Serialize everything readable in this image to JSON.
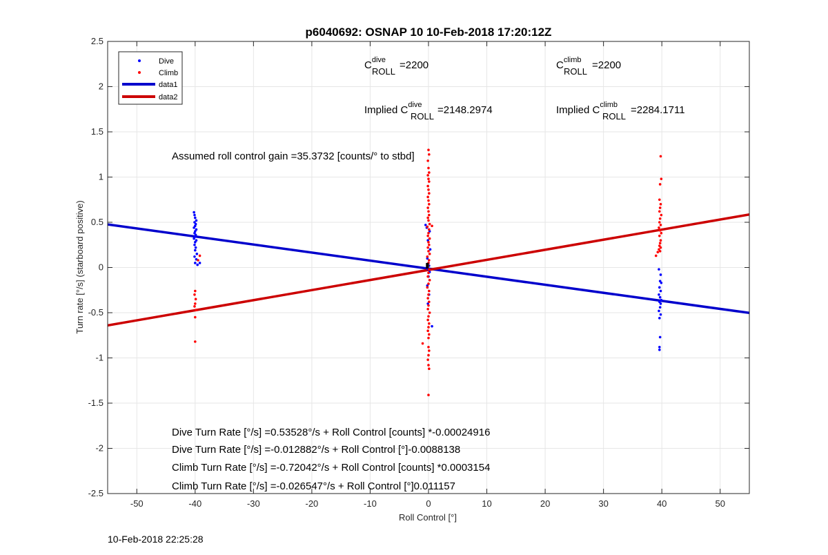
{
  "chart_data": {
    "type": "scatter",
    "title": "p6040692: OSNAP 10 10-Feb-2018 17:20:12Z",
    "xlabel": "Roll Control [°]",
    "ylabel": "Turn rate [°/s] (starboard positive)",
    "xlim": [
      -55,
      55
    ],
    "ylim": [
      -2.5,
      2.5
    ],
    "x_ticks": [
      -50,
      -40,
      -30,
      -20,
      -10,
      0,
      10,
      20,
      30,
      40,
      50
    ],
    "y_ticks": [
      -2.5,
      -2,
      -1.5,
      -1,
      -0.5,
      0,
      0.5,
      1,
      1.5,
      2,
      2.5
    ],
    "grid": true,
    "legend_position": "top-left",
    "legend": [
      {
        "label": "Dive",
        "kind": "marker",
        "color": "#0000ff"
      },
      {
        "label": "Climb",
        "kind": "marker",
        "color": "#ff0000"
      },
      {
        "label": "data1",
        "kind": "line",
        "color": "#0000cc"
      },
      {
        "label": "data2",
        "kind": "line",
        "color": "#cc0000"
      }
    ],
    "series": [
      {
        "name": "Dive",
        "kind": "scatter",
        "color": "#0000ff",
        "points": [
          [
            -40.2,
            0.61
          ],
          [
            -40.1,
            0.58
          ],
          [
            -40.0,
            0.55
          ],
          [
            -39.8,
            0.52
          ],
          [
            -40.1,
            0.5
          ],
          [
            -39.9,
            0.48
          ],
          [
            -40.0,
            0.46
          ],
          [
            -40.2,
            0.44
          ],
          [
            -39.8,
            0.42
          ],
          [
            -40.0,
            0.4
          ],
          [
            -40.1,
            0.38
          ],
          [
            -39.9,
            0.36
          ],
          [
            -40.0,
            0.34
          ],
          [
            -40.2,
            0.32
          ],
          [
            -39.8,
            0.3
          ],
          [
            -40.0,
            0.28
          ],
          [
            -40.1,
            0.25
          ],
          [
            -39.9,
            0.22
          ],
          [
            -40.0,
            0.19
          ],
          [
            -39.7,
            0.15
          ],
          [
            -40.1,
            0.12
          ],
          [
            -39.8,
            0.09
          ],
          [
            -40.0,
            0.05
          ],
          [
            -39.6,
            0.03
          ],
          [
            -39.2,
            0.05
          ],
          [
            -0.5,
            0.47
          ],
          [
            -0.3,
            0.44
          ],
          [
            0.2,
            0.4
          ],
          [
            -0.1,
            0.3
          ],
          [
            0.3,
            0.2
          ],
          [
            -0.2,
            0.1
          ],
          [
            0.0,
            0.05
          ],
          [
            0.1,
            0.02
          ],
          [
            -0.1,
            -0.02
          ],
          [
            0.2,
            -0.05
          ],
          [
            0.0,
            -0.1
          ],
          [
            -0.2,
            -0.2
          ],
          [
            0.6,
            -0.65
          ],
          [
            0.1,
            -0.3
          ],
          [
            -0.1,
            -0.4
          ],
          [
            39.5,
            -0.02
          ],
          [
            39.8,
            -0.08
          ],
          [
            39.7,
            -0.15
          ],
          [
            39.9,
            -0.17
          ],
          [
            39.6,
            -0.22
          ],
          [
            39.8,
            -0.26
          ],
          [
            39.5,
            -0.3
          ],
          [
            39.7,
            -0.33
          ],
          [
            39.9,
            -0.36
          ],
          [
            39.6,
            -0.38
          ],
          [
            39.8,
            -0.4
          ],
          [
            39.7,
            -0.44
          ],
          [
            39.5,
            -0.48
          ],
          [
            39.8,
            -0.52
          ],
          [
            39.6,
            -0.56
          ],
          [
            39.7,
            -0.77
          ],
          [
            39.6,
            -0.88
          ],
          [
            39.6,
            -0.91
          ]
        ]
      },
      {
        "name": "Climb",
        "kind": "scatter",
        "color": "#ff0000",
        "points": [
          [
            -39.2,
            0.13
          ],
          [
            -39.5,
            0.08
          ],
          [
            -40.0,
            -0.26
          ],
          [
            -40.1,
            -0.3
          ],
          [
            -39.9,
            -0.35
          ],
          [
            -40.0,
            -0.4
          ],
          [
            -40.1,
            -0.43
          ],
          [
            -39.8,
            -0.47
          ],
          [
            -40.0,
            -0.55
          ],
          [
            -40.0,
            -0.82
          ],
          [
            0.0,
            1.3
          ],
          [
            0.1,
            1.25
          ],
          [
            -0.1,
            1.18
          ],
          [
            0.0,
            1.1
          ],
          [
            0.1,
            1.05
          ],
          [
            -0.1,
            1.02
          ],
          [
            0.0,
            0.98
          ],
          [
            0.1,
            0.95
          ],
          [
            -0.1,
            0.9
          ],
          [
            0.0,
            0.86
          ],
          [
            0.1,
            0.82
          ],
          [
            -0.1,
            0.78
          ],
          [
            0.0,
            0.74
          ],
          [
            0.1,
            0.7
          ],
          [
            -0.1,
            0.66
          ],
          [
            0.0,
            0.62
          ],
          [
            0.1,
            0.58
          ],
          [
            -0.1,
            0.55
          ],
          [
            0.0,
            0.52
          ],
          [
            0.2,
            0.48
          ],
          [
            -0.2,
            0.45
          ],
          [
            0.1,
            0.42
          ],
          [
            0.0,
            0.38
          ],
          [
            0.6,
            0.46
          ],
          [
            -0.1,
            0.35
          ],
          [
            0.2,
            0.32
          ],
          [
            0.0,
            0.28
          ],
          [
            0.1,
            0.25
          ],
          [
            -0.1,
            0.22
          ],
          [
            0.0,
            0.18
          ],
          [
            0.2,
            0.15
          ],
          [
            -0.2,
            0.12
          ],
          [
            0.1,
            0.08
          ],
          [
            0.0,
            0.05
          ],
          [
            -0.1,
            0.02
          ],
          [
            0.1,
            -0.02
          ],
          [
            0.0,
            -0.06
          ],
          [
            -0.1,
            -0.1
          ],
          [
            0.2,
            -0.14
          ],
          [
            0.0,
            -0.18
          ],
          [
            -0.2,
            -0.22
          ],
          [
            0.1,
            -0.26
          ],
          [
            0.0,
            -0.3
          ],
          [
            -0.1,
            -0.34
          ],
          [
            0.1,
            -0.38
          ],
          [
            0.0,
            -0.42
          ],
          [
            -0.1,
            -0.46
          ],
          [
            0.2,
            -0.5
          ],
          [
            0.0,
            -0.54
          ],
          [
            -0.1,
            -0.58
          ],
          [
            0.1,
            -0.62
          ],
          [
            0.0,
            -0.66
          ],
          [
            -0.1,
            -0.7
          ],
          [
            0.1,
            -0.74
          ],
          [
            0.0,
            -0.78
          ],
          [
            -1.0,
            -0.84
          ],
          [
            0.0,
            -0.88
          ],
          [
            0.1,
            -0.92
          ],
          [
            0.0,
            -0.97
          ],
          [
            -0.1,
            -1.02
          ],
          [
            0.0,
            -1.08
          ],
          [
            0.1,
            -1.12
          ],
          [
            0.0,
            -1.41
          ],
          [
            39.8,
            1.23
          ],
          [
            39.9,
            0.98
          ],
          [
            39.7,
            0.92
          ],
          [
            39.6,
            0.75
          ],
          [
            39.8,
            0.7
          ],
          [
            39.7,
            0.66
          ],
          [
            39.6,
            0.62
          ],
          [
            39.9,
            0.58
          ],
          [
            39.7,
            0.54
          ],
          [
            39.6,
            0.5
          ],
          [
            39.8,
            0.47
          ],
          [
            39.5,
            0.44
          ],
          [
            39.7,
            0.41
          ],
          [
            39.9,
            0.38
          ],
          [
            39.6,
            0.35
          ],
          [
            39.8,
            0.3
          ],
          [
            39.7,
            0.27
          ],
          [
            39.6,
            0.24
          ],
          [
            39.8,
            0.22
          ],
          [
            39.5,
            0.2
          ],
          [
            39.7,
            0.18
          ],
          [
            39.3,
            0.17
          ],
          [
            39.0,
            0.13
          ]
        ]
      },
      {
        "name": "data1",
        "kind": "line",
        "color": "#0000cc",
        "points": [
          [
            -55,
            0.4762
          ],
          [
            55,
            -0.5025
          ]
        ]
      },
      {
        "name": "data2",
        "kind": "line",
        "color": "#cc0000",
        "points": [
          [
            -55,
            -0.64
          ],
          [
            55,
            0.5862
          ]
        ]
      }
    ],
    "annotations": {
      "c_roll_dive": {
        "base": "C",
        "sup": "dive",
        "sub": "ROLL",
        "value": "=2200"
      },
      "c_roll_climb": {
        "base": "C",
        "sup": "climb",
        "sub": "ROLL",
        "value": "=2200"
      },
      "implied_dive": {
        "prefix": "Implied C",
        "sup": "dive",
        "sub": "ROLL",
        "value": "=2148.2974"
      },
      "implied_climb": {
        "prefix": "Implied C",
        "sup": "climb",
        "sub": "ROLL",
        "value": "=2284.1711"
      },
      "gain": "Assumed roll control gain =35.3732 [counts/° to stbd]",
      "dive_counts": "Dive Turn Rate [°/s] =0.53528°/s + Roll Control [counts] *-0.00024916",
      "dive_deg": "Dive Turn Rate [°/s] =-0.012882°/s + Roll Control [°]-0.0088138",
      "climb_counts": "Climb Turn Rate [°/s] =-0.72042°/s + Roll Control [counts] *0.0003154",
      "climb_deg": "Climb Turn Rate [°/s] =-0.026547°/s + Roll Control [°]0.011157"
    }
  },
  "footer": {
    "timestamp": "10-Feb-2018 22:25:28"
  }
}
